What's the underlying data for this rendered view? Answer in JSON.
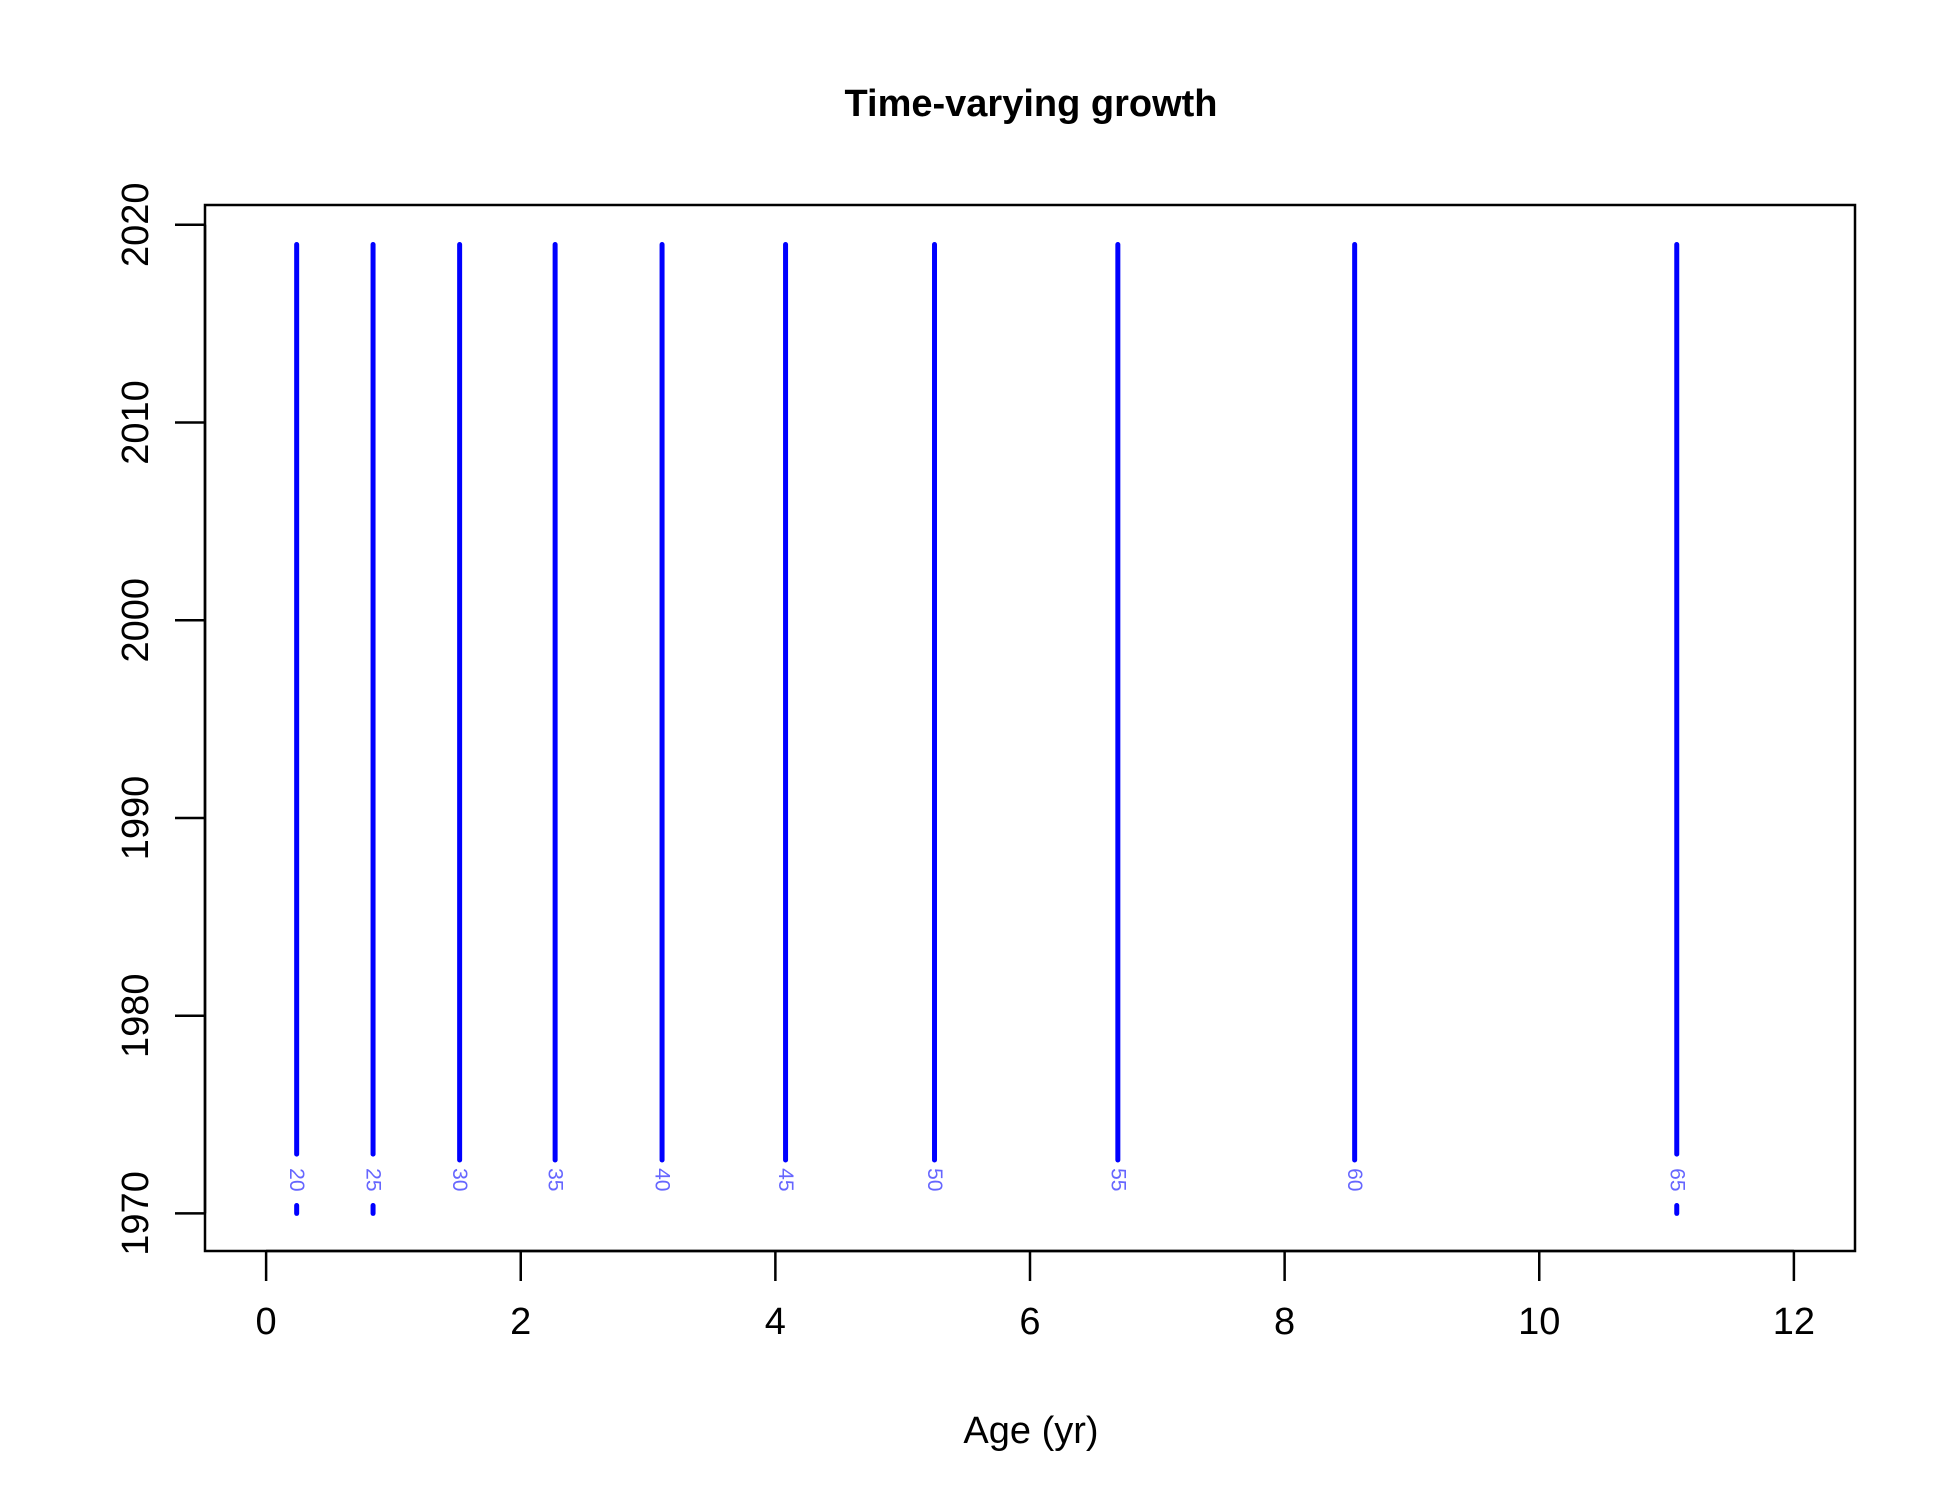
{
  "chart_data": {
    "type": "line",
    "title": "Time-varying growth",
    "xlabel": "Age (yr)",
    "ylabel": "",
    "xlim": [
      -0.48,
      12.48
    ],
    "ylim": [
      1968.1,
      2021.0
    ],
    "x_ticks": [
      0,
      2,
      4,
      6,
      8,
      10,
      12
    ],
    "y_ticks": [
      1970,
      1980,
      1990,
      2000,
      2010,
      2020
    ],
    "grid": false,
    "legend": "none",
    "line_color": "#0000FF",
    "label_color": "#6666FF",
    "label_y": 1971.7,
    "series": [
      {
        "label": "20",
        "x": 0.24,
        "y_start": 1970,
        "y_end": 2019,
        "label_gap": [
          1970.4,
          1973.0
        ]
      },
      {
        "label": "25",
        "x": 0.84,
        "y_start": 1970,
        "y_end": 2019,
        "label_gap": [
          1970.4,
          1973.0
        ]
      },
      {
        "label": "30",
        "x": 1.52,
        "y_start": 1972.7,
        "y_end": 2019,
        "label_gap": null
      },
      {
        "label": "35",
        "x": 2.27,
        "y_start": 1972.7,
        "y_end": 2019,
        "label_gap": null
      },
      {
        "label": "40",
        "x": 3.11,
        "y_start": 1972.7,
        "y_end": 2019,
        "label_gap": null
      },
      {
        "label": "45",
        "x": 4.08,
        "y_start": 1972.7,
        "y_end": 2019,
        "label_gap": null
      },
      {
        "label": "50",
        "x": 5.25,
        "y_start": 1972.7,
        "y_end": 2019,
        "label_gap": null
      },
      {
        "label": "55",
        "x": 6.69,
        "y_start": 1972.7,
        "y_end": 2019,
        "label_gap": null
      },
      {
        "label": "60",
        "x": 8.55,
        "y_start": 1972.7,
        "y_end": 2019,
        "label_gap": null
      },
      {
        "label": "65",
        "x": 11.08,
        "y_start": 1970,
        "y_end": 2019,
        "label_gap": [
          1970.4,
          1973.0
        ]
      }
    ]
  }
}
